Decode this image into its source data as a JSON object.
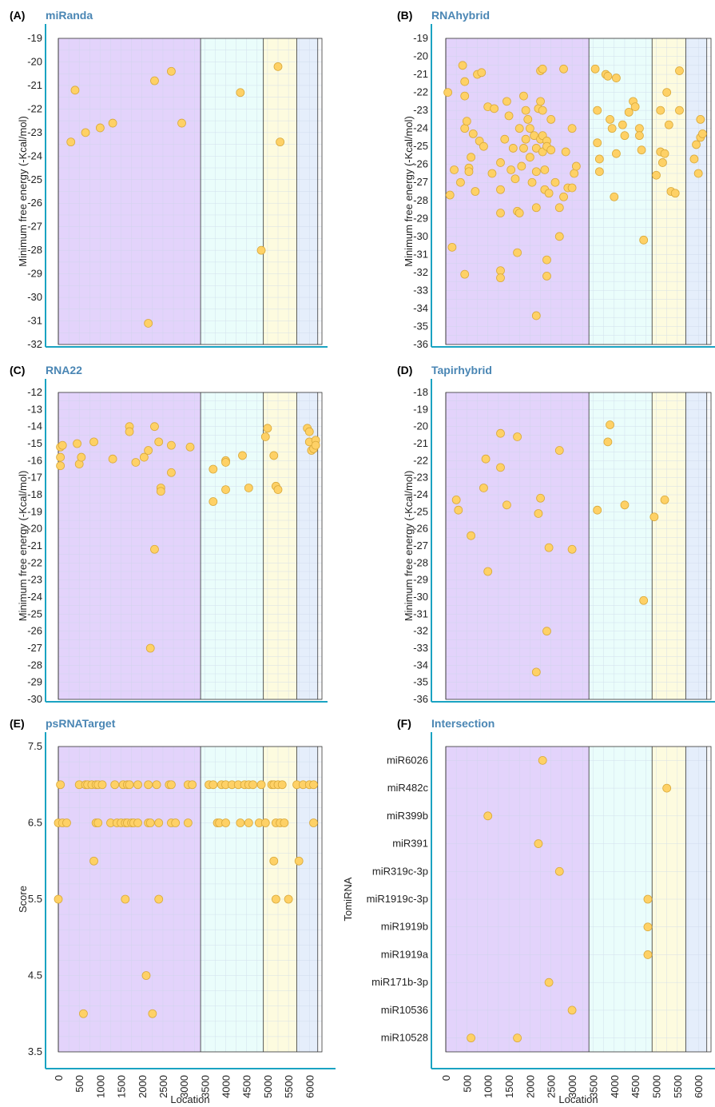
{
  "colors": {
    "region1": "#e3d3fb",
    "region2": "#eafdfb",
    "region3": "#fdfbdf",
    "region4": "#e5eefb",
    "axis": "#1aa3c2",
    "point_fill": "#fed166",
    "point_stroke": "#d9a93a",
    "title": "#4a86b4"
  },
  "common": {
    "ylabel_mfe": "Minimum free energy (-Kcal/mol)",
    "ylabel_score": "Score",
    "ylabel_tomirna": "TomiRNA",
    "xlabel": "Location",
    "x_ticks": [
      "0",
      "500",
      "1000",
      "1500",
      "2000",
      "2500",
      "3000",
      "3500",
      "4000",
      "4500",
      "5000",
      "5500",
      "6000"
    ],
    "region_boundaries": [
      0,
      3400,
      4900,
      5700,
      6200
    ]
  },
  "chart_data": [
    {
      "id": "A",
      "label": "(A)",
      "title": "miRanda",
      "type": "scatter",
      "ylabel": "Minimum free energy (-Kcal/mol)",
      "ylim": [
        -32,
        -19
      ],
      "yticks": [
        "-19",
        "-20",
        "-21",
        "-22",
        "-23",
        "-24",
        "-25",
        "-26",
        "-27",
        "-28",
        "-29",
        "-30",
        "-31",
        "-32"
      ],
      "points": [
        [
          400,
          -21.2
        ],
        [
          300,
          -23.4
        ],
        [
          650,
          -23
        ],
        [
          1000,
          -22.8
        ],
        [
          1300,
          -22.6
        ],
        [
          2300,
          -20.8
        ],
        [
          2700,
          -20.4
        ],
        [
          2950,
          -22.6
        ],
        [
          2150,
          -31.1
        ],
        [
          4350,
          -21.3
        ],
        [
          5250,
          -20.2
        ],
        [
          5300,
          -23.4
        ],
        [
          4850,
          -28
        ]
      ]
    },
    {
      "id": "B",
      "label": "(B)",
      "title": "RNAhybrid",
      "type": "scatter",
      "ylabel": "Minimum free energy (-Kcal/mol)",
      "ylim": [
        -36,
        -19
      ],
      "yticks": [
        "-19",
        "-20",
        "-21",
        "-22",
        "-23",
        "-24",
        "-25",
        "-26",
        "-27",
        "-28",
        "-29",
        "-30",
        "-31",
        "-32",
        "-33",
        "-34",
        "-35",
        "-36"
      ],
      "points": [
        [
          50,
          -22
        ],
        [
          100,
          -27.7
        ],
        [
          150,
          -30.6
        ],
        [
          200,
          -26.3
        ],
        [
          350,
          -27
        ],
        [
          400,
          -20.5
        ],
        [
          450,
          -21.4
        ],
        [
          450,
          -22.2
        ],
        [
          450,
          -24
        ],
        [
          450,
          -32.1
        ],
        [
          500,
          -23.6
        ],
        [
          550,
          -26.2
        ],
        [
          550,
          -26.4
        ],
        [
          600,
          -25.6
        ],
        [
          650,
          -24.3
        ],
        [
          700,
          -27.5
        ],
        [
          750,
          -21
        ],
        [
          800,
          -24.7
        ],
        [
          850,
          -20.9
        ],
        [
          900,
          -25
        ],
        [
          1000,
          -22.8
        ],
        [
          1100,
          -26.5
        ],
        [
          1150,
          -22.9
        ],
        [
          1300,
          -31.9
        ],
        [
          1300,
          -32.3
        ],
        [
          1300,
          -28.7
        ],
        [
          1300,
          -27.4
        ],
        [
          1300,
          -25.9
        ],
        [
          1400,
          -24.6
        ],
        [
          1450,
          -22.5
        ],
        [
          1500,
          -23.3
        ],
        [
          1550,
          -26.3
        ],
        [
          1600,
          -25.1
        ],
        [
          1650,
          -26.8
        ],
        [
          1700,
          -30.9
        ],
        [
          1700,
          -28.6
        ],
        [
          1750,
          -28.7
        ],
        [
          1750,
          -24
        ],
        [
          1800,
          -26.1
        ],
        [
          1850,
          -25.1
        ],
        [
          1850,
          -22.2
        ],
        [
          1900,
          -23
        ],
        [
          1900,
          -24.6
        ],
        [
          1950,
          -23.5
        ],
        [
          2000,
          -24
        ],
        [
          2000,
          -25.6
        ],
        [
          2050,
          -27
        ],
        [
          2100,
          -24.4
        ],
        [
          2150,
          -34.4
        ],
        [
          2150,
          -28.4
        ],
        [
          2150,
          -26.4
        ],
        [
          2150,
          -25.1
        ],
        [
          2200,
          -22.9
        ],
        [
          2250,
          -20.8
        ],
        [
          2250,
          -22.5
        ],
        [
          2250,
          -24.6
        ],
        [
          2300,
          -20.7
        ],
        [
          2300,
          -23
        ],
        [
          2300,
          -24.4
        ],
        [
          2300,
          -25.3
        ],
        [
          2350,
          -26.3
        ],
        [
          2350,
          -27.4
        ],
        [
          2400,
          -24.7
        ],
        [
          2400,
          -25
        ],
        [
          2400,
          -31.3
        ],
        [
          2400,
          -32.2
        ],
        [
          2450,
          -27.6
        ],
        [
          2500,
          -23.5
        ],
        [
          2500,
          -25.2
        ],
        [
          2600,
          -27
        ],
        [
          2700,
          -30
        ],
        [
          2700,
          -28.4
        ],
        [
          2800,
          -27.8
        ],
        [
          2800,
          -20.7
        ],
        [
          2850,
          -25.3
        ],
        [
          2900,
          -27.3
        ],
        [
          3000,
          -24
        ],
        [
          3000,
          -27.3
        ],
        [
          3050,
          -26.5
        ],
        [
          3100,
          -26.1
        ],
        [
          3550,
          -20.7
        ],
        [
          3600,
          -23
        ],
        [
          3600,
          -24.8
        ],
        [
          3650,
          -25.7
        ],
        [
          3650,
          -26.4
        ],
        [
          3800,
          -21
        ],
        [
          3850,
          -21.1
        ],
        [
          3900,
          -23.5
        ],
        [
          3950,
          -24
        ],
        [
          4000,
          -27.8
        ],
        [
          4050,
          -21.2
        ],
        [
          4050,
          -25.4
        ],
        [
          4200,
          -23.8
        ],
        [
          4250,
          -24.4
        ],
        [
          4350,
          -23.1
        ],
        [
          4450,
          -22.5
        ],
        [
          4500,
          -22.8
        ],
        [
          4600,
          -24
        ],
        [
          4600,
          -24.4
        ],
        [
          4650,
          -25.2
        ],
        [
          4700,
          -30.2
        ],
        [
          5000,
          -26.6
        ],
        [
          5100,
          -23
        ],
        [
          5100,
          -25.3
        ],
        [
          5150,
          -25.9
        ],
        [
          5200,
          -25.4
        ],
        [
          5250,
          -22
        ],
        [
          5300,
          -23.8
        ],
        [
          5350,
          -27.5
        ],
        [
          5450,
          -27.6
        ],
        [
          5550,
          -20.8
        ],
        [
          5550,
          -23
        ],
        [
          5900,
          -25.7
        ],
        [
          5950,
          -24.9
        ],
        [
          6000,
          -26.5
        ],
        [
          6050,
          -24.5
        ],
        [
          6100,
          -24.3
        ],
        [
          6050,
          -23.5
        ]
      ]
    },
    {
      "id": "C",
      "label": "(C)",
      "title": "RNA22",
      "type": "scatter",
      "ylabel": "Minimum free energy (-Kcal/mol)",
      "ylim": [
        -30,
        -12
      ],
      "yticks": [
        "-12",
        "-13",
        "-14",
        "-15",
        "-16",
        "-17",
        "-18",
        "-19",
        "-20",
        "-21",
        "-22",
        "-23",
        "-24",
        "-25",
        "-26",
        "-27",
        "-28",
        "-29",
        "-30"
      ],
      "points": [
        [
          50,
          -15.2
        ],
        [
          50,
          -15.8
        ],
        [
          50,
          -16.3
        ],
        [
          100,
          -15.1
        ],
        [
          450,
          -15
        ],
        [
          500,
          -16.2
        ],
        [
          550,
          -15.8
        ],
        [
          850,
          -14.9
        ],
        [
          1300,
          -15.9
        ],
        [
          1700,
          -14
        ],
        [
          1700,
          -14.3
        ],
        [
          1850,
          -16.1
        ],
        [
          2050,
          -15.8
        ],
        [
          2150,
          -15.4
        ],
        [
          2200,
          -27
        ],
        [
          2300,
          -14
        ],
        [
          2300,
          -21.2
        ],
        [
          2400,
          -14.9
        ],
        [
          2450,
          -17.6
        ],
        [
          2450,
          -17.8
        ],
        [
          2700,
          -15.1
        ],
        [
          2700,
          -16.7
        ],
        [
          3150,
          -15.2
        ],
        [
          3700,
          -16.5
        ],
        [
          3700,
          -18.4
        ],
        [
          4000,
          -16
        ],
        [
          4000,
          -16.1
        ],
        [
          4000,
          -17.7
        ],
        [
          4400,
          -15.7
        ],
        [
          4550,
          -17.6
        ],
        [
          4950,
          -14.6
        ],
        [
          5000,
          -14.1
        ],
        [
          5150,
          -15.7
        ],
        [
          5200,
          -17.5
        ],
        [
          5250,
          -17.7
        ],
        [
          5950,
          -14.1
        ],
        [
          6000,
          -14.3
        ],
        [
          6000,
          -14.9
        ],
        [
          6050,
          -15.4
        ],
        [
          6100,
          -15.3
        ],
        [
          6150,
          -14.8
        ],
        [
          6150,
          -15.1
        ]
      ]
    },
    {
      "id": "D",
      "label": "(D)",
      "title": "Tapirhybrid",
      "type": "scatter",
      "ylabel": "Minimum free energy (-Kcal/mol)",
      "ylim": [
        -36,
        -18
      ],
      "yticks": [
        "-18",
        "-19",
        "-20",
        "-21",
        "-22",
        "-23",
        "-24",
        "-25",
        "-26",
        "-27",
        "-28",
        "-29",
        "-30",
        "-31",
        "-32",
        "-33",
        "-34",
        "-35",
        "-36"
      ],
      "points": [
        [
          250,
          -24.3
        ],
        [
          300,
          -24.9
        ],
        [
          600,
          -26.4
        ],
        [
          900,
          -23.6
        ],
        [
          950,
          -21.9
        ],
        [
          1000,
          -28.5
        ],
        [
          1300,
          -20.4
        ],
        [
          1300,
          -22.4
        ],
        [
          1450,
          -24.6
        ],
        [
          1700,
          -20.6
        ],
        [
          2150,
          -34.4
        ],
        [
          2200,
          -25.1
        ],
        [
          2250,
          -24.2
        ],
        [
          2400,
          -32
        ],
        [
          2450,
          -27.1
        ],
        [
          2700,
          -21.4
        ],
        [
          3000,
          -27.2
        ],
        [
          3600,
          -24.9
        ],
        [
          3850,
          -20.9
        ],
        [
          3900,
          -19.9
        ],
        [
          4250,
          -24.6
        ],
        [
          4700,
          -30.2
        ],
        [
          4950,
          -25.3
        ],
        [
          5200,
          -24.3
        ]
      ]
    },
    {
      "id": "E",
      "label": "(E)",
      "title": "psRNATarget",
      "type": "scatter",
      "ylabel": "Score",
      "ylim": [
        3.5,
        7.5
      ],
      "yticks": [
        "7.5",
        "6.5",
        "5.5",
        "4.5",
        "3.5"
      ],
      "ytick_values": [
        7.5,
        6.5,
        5.5,
        4.5,
        3.5
      ],
      "ygrid_step": 0.2,
      "points": [
        [
          0,
          6.5
        ],
        [
          0,
          5.5
        ],
        [
          50,
          7
        ],
        [
          100,
          6.5
        ],
        [
          200,
          6.5
        ],
        [
          500,
          7
        ],
        [
          650,
          7
        ],
        [
          600,
          4
        ],
        [
          700,
          7
        ],
        [
          800,
          7
        ],
        [
          850,
          6
        ],
        [
          900,
          6.5
        ],
        [
          900,
          7
        ],
        [
          950,
          6.5
        ],
        [
          950,
          7
        ],
        [
          1050,
          7
        ],
        [
          1250,
          6.5
        ],
        [
          1350,
          7
        ],
        [
          1400,
          6.5
        ],
        [
          1500,
          6.5
        ],
        [
          1550,
          7
        ],
        [
          1600,
          6.5
        ],
        [
          1600,
          5.5
        ],
        [
          1650,
          7
        ],
        [
          1650,
          6.5
        ],
        [
          1700,
          7
        ],
        [
          1750,
          6.5
        ],
        [
          1800,
          6.5
        ],
        [
          1900,
          7
        ],
        [
          1900,
          6.5
        ],
        [
          2100,
          4.5
        ],
        [
          2150,
          7
        ],
        [
          2150,
          6.5
        ],
        [
          2200,
          6.5
        ],
        [
          2250,
          4
        ],
        [
          2350,
          7
        ],
        [
          2400,
          6.5
        ],
        [
          2400,
          5.5
        ],
        [
          2650,
          7
        ],
        [
          2700,
          6.5
        ],
        [
          2700,
          7
        ],
        [
          2800,
          6.5
        ],
        [
          3100,
          7
        ],
        [
          3100,
          6.5
        ],
        [
          3200,
          7
        ],
        [
          3600,
          7
        ],
        [
          3700,
          7
        ],
        [
          3800,
          6.5
        ],
        [
          3850,
          6.5
        ],
        [
          3900,
          7
        ],
        [
          4000,
          6.5
        ],
        [
          4000,
          7
        ],
        [
          4150,
          7
        ],
        [
          4300,
          7
        ],
        [
          4350,
          6.5
        ],
        [
          4450,
          7
        ],
        [
          4550,
          6.5
        ],
        [
          4550,
          7
        ],
        [
          4650,
          7
        ],
        [
          4800,
          6.5
        ],
        [
          4850,
          7
        ],
        [
          4950,
          6.5
        ],
        [
          5100,
          7
        ],
        [
          5150,
          7
        ],
        [
          5150,
          6
        ],
        [
          5200,
          5.5
        ],
        [
          5200,
          6.5
        ],
        [
          5250,
          7
        ],
        [
          5300,
          6.5
        ],
        [
          5350,
          7
        ],
        [
          5400,
          6.5
        ],
        [
          5500,
          5.5
        ],
        [
          5700,
          7
        ],
        [
          5750,
          6
        ],
        [
          5850,
          7
        ],
        [
          6000,
          7
        ],
        [
          6100,
          6.5
        ],
        [
          6100,
          7
        ]
      ]
    },
    {
      "id": "F",
      "label": "(F)",
      "title": "Intersection",
      "type": "scatter",
      "ylabel": "TomiRNA",
      "categories": [
        "miR6026",
        "miR482c",
        "miR399b",
        "miR391",
        "miR319c-3p",
        "miR1919c-3p",
        "miR1919b",
        "miR1919a",
        "miR171b-3p",
        "miR10536",
        "miR10528"
      ],
      "points": [
        [
          2300,
          "miR6026"
        ],
        [
          5250,
          "miR482c"
        ],
        [
          1000,
          "miR399b"
        ],
        [
          2200,
          "miR391"
        ],
        [
          2700,
          "miR319c-3p"
        ],
        [
          4800,
          "miR1919c-3p"
        ],
        [
          4800,
          "miR1919b"
        ],
        [
          4800,
          "miR1919a"
        ],
        [
          2450,
          "miR171b-3p"
        ],
        [
          3000,
          "miR10536"
        ],
        [
          600,
          "miR10528"
        ],
        [
          1700,
          "miR10528"
        ]
      ]
    }
  ]
}
